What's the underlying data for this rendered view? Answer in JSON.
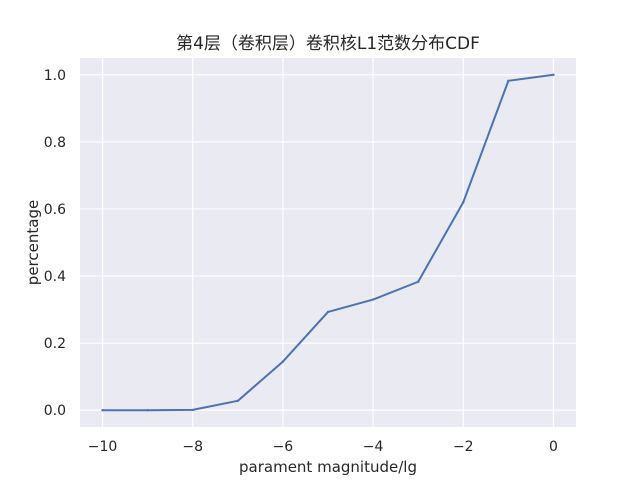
{
  "chart_data": {
    "type": "line",
    "title": "第4层（卷积层）卷积核L1范数分布CDF",
    "xlabel": "parament magnitude/lg",
    "ylabel": "percentage",
    "xlim": [
      -10.5,
      0.5
    ],
    "ylim": [
      -0.05,
      1.05
    ],
    "xticks": [
      -10,
      -8,
      -6,
      -4,
      -2,
      0
    ],
    "xtick_labels": [
      "−10",
      "−8",
      "−6",
      "−4",
      "−2",
      "0"
    ],
    "yticks": [
      0.0,
      0.2,
      0.4,
      0.6,
      0.8,
      1.0
    ],
    "ytick_labels": [
      "0.0",
      "0.2",
      "0.4",
      "0.6",
      "0.8",
      "1.0"
    ],
    "grid": true,
    "series": [
      {
        "x": [
          -10,
          -9,
          -8,
          -7,
          -6,
          -5,
          -4,
          -3,
          -2,
          -1,
          0
        ],
        "y": [
          0.0,
          0.0,
          0.001,
          0.028,
          0.145,
          0.293,
          0.33,
          0.383,
          0.62,
          0.982,
          1.0
        ]
      }
    ],
    "colors": {
      "plot_background": "#eaeaf2",
      "grid": "#ffffff",
      "line": "#4c72b0",
      "text": "#262626"
    }
  }
}
